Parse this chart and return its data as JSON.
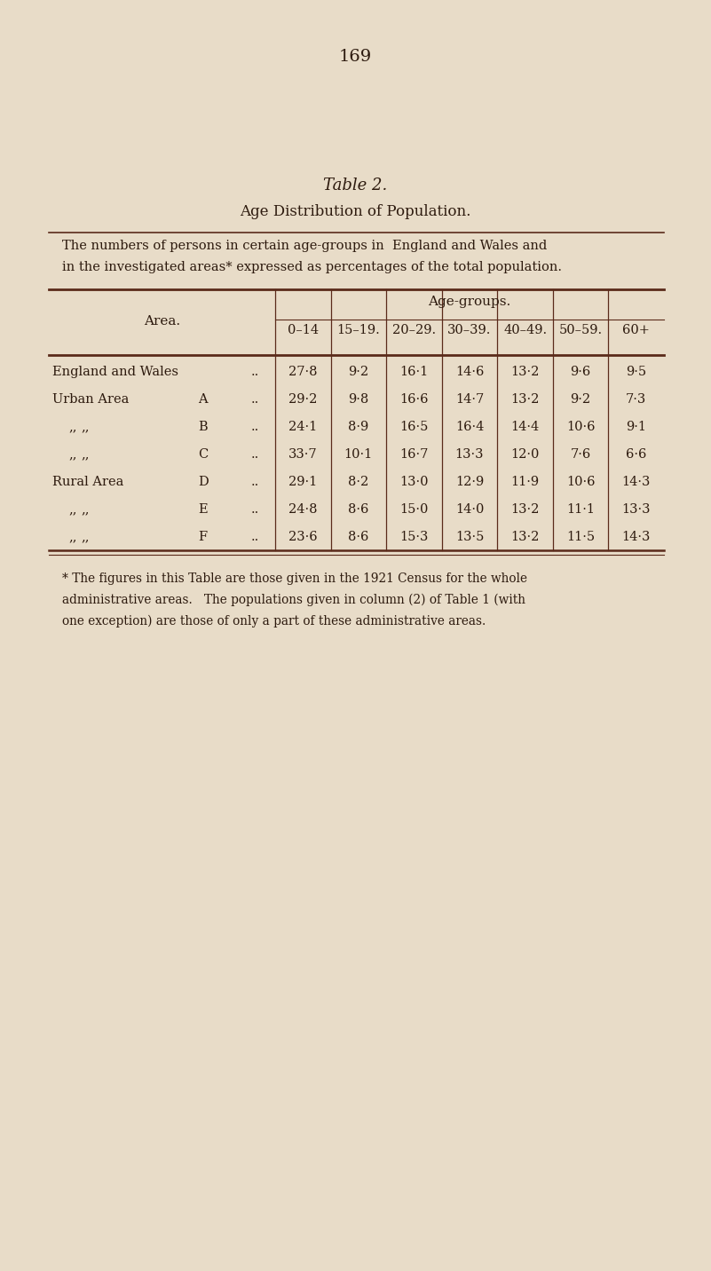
{
  "page_number": "169",
  "table_title": "Table 2.",
  "table_heading": "Age Distribution of Population.",
  "description_line1": "The numbers of persons in certain age-groups in  England and Wales and",
  "description_line2": "in the investigated areas* expressed as percentages of the total population.",
  "col_header_main": "Age-groups.",
  "col_header_area": "Area.",
  "col_headers": [
    "0–14",
    "15–19.",
    "20–29.",
    "30–39.",
    "40–49.",
    "50–59.",
    "60+"
  ],
  "rows": [
    {
      "label1": "England and Wales",
      "label2": "",
      "dots": "..",
      "values": [
        "27·8",
        "9·2",
        "16·1",
        "14·6",
        "13·2",
        "9·6",
        "9·5"
      ]
    },
    {
      "label1": "Urban Area",
      "label2": "A",
      "dots": "..",
      "values": [
        "29·2",
        "9·8",
        "16·6",
        "14·7",
        "13·2",
        "9·2",
        "7·3"
      ]
    },
    {
      "label1": "„„",
      "label2": "B",
      "dots": "..",
      "values": [
        "24·1",
        "8·9",
        "16·5",
        "16·4",
        "14·4",
        "10·6",
        "9·1"
      ]
    },
    {
      "label1": "„„",
      "label2": "C",
      "dots": "..",
      "values": [
        "33·7",
        "10·1",
        "16·7",
        "13·3",
        "12·0",
        "7·6",
        "6·6"
      ]
    },
    {
      "label1": "Rural Area",
      "label2": "D",
      "dots": "..",
      "values": [
        "29·1",
        "8·2",
        "13·0",
        "12·9",
        "11·9",
        "10·6",
        "14·3"
      ]
    },
    {
      "label1": "„„",
      "label2": "E",
      "dots": "..",
      "values": [
        "24·8",
        "8·6",
        "15·0",
        "14·0",
        "13·2",
        "11·1",
        "13·3"
      ]
    },
    {
      "label1": "„„",
      "label2": "F",
      "dots": "..",
      "values": [
        "23·6",
        "8·6",
        "15·3",
        "13·5",
        "13·2",
        "11·5",
        "14·3"
      ]
    }
  ],
  "footnote": "* The figures in this Table are those given in the 1921 Census for the whole\nadministrative areas.   The populations given in column (2) of Table 1 (with\none exception) are those of only a part of these administrative areas.",
  "bg_color": "#e8dcc8",
  "text_color": "#2d1a0e",
  "line_color": "#5a2a1a"
}
